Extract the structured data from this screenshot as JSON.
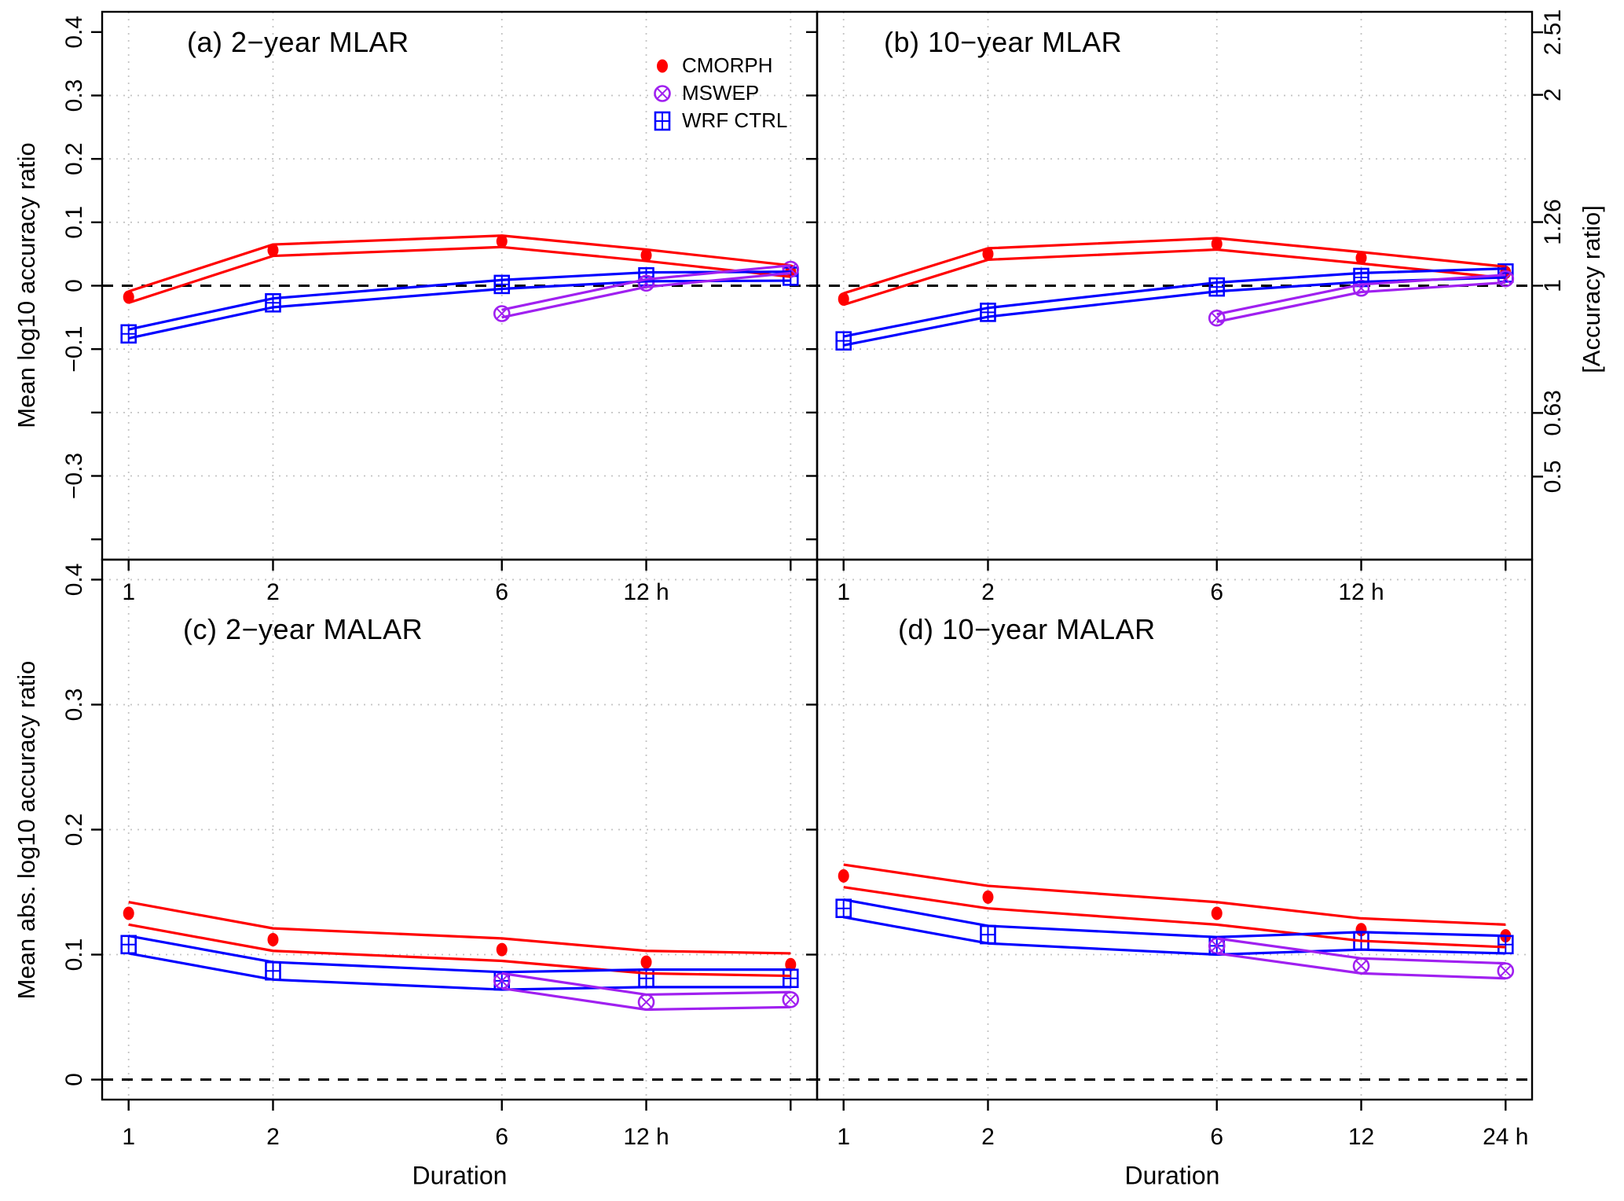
{
  "figure": {
    "panel_titles": {
      "a": "(a) 2−year MLAR",
      "b": "(b) 10−year MLAR",
      "c": "(c) 2−year MALAR",
      "d": "(d) 10−year MALAR"
    },
    "axis_titles": {
      "left_top": "Mean log10 accuracy ratio",
      "left_bottom": "Mean abs. log10 accuracy ratio",
      "right": "[Accuracy ratio]",
      "x_left": "Duration",
      "x_right": "Duration"
    }
  },
  "legend": {
    "items": [
      {
        "label": "CMORPH",
        "series": "CMORPH"
      },
      {
        "label": "MSWEP",
        "series": "MSWEP"
      },
      {
        "label": "WRF CTRL",
        "series": "WRF CTRL"
      }
    ]
  },
  "chart_data": {
    "type": "line",
    "x_scale": "log10",
    "durations_h": [
      1,
      2,
      6,
      12,
      24
    ],
    "series_styles": [
      {
        "name": "CMORPH",
        "color": "#FF0000",
        "marker": "filled-circle",
        "band_halfwidth": 0.009
      },
      {
        "name": "WRF CTRL",
        "color": "#0000FF",
        "marker": "square-plus",
        "band_halfwidth": 0.007
      },
      {
        "name": "MSWEP",
        "color": "#A020F0",
        "marker": "circle-x",
        "band_halfwidth": 0.006
      }
    ],
    "grid_color": "#C4C4C4",
    "zero_line_value": 0,
    "axes": {
      "y_top": {
        "ylim": [
          -0.4,
          0.4
        ],
        "ticks": [
          0.4,
          0.3,
          0.2,
          0.1,
          0,
          -0.1,
          -0.2,
          -0.3,
          -0.4
        ],
        "labels": [
          "0.4",
          "0.3",
          "0.2",
          "0.1",
          "0",
          "−0.1",
          "",
          "−0.3",
          ""
        ]
      },
      "y_bottom": {
        "ylim": [
          0,
          0.4
        ],
        "ticks": [
          0.4,
          0.3,
          0.2,
          0.1,
          0
        ],
        "labels": [
          "0.4",
          "0.3",
          "0.2",
          "0.1",
          "0"
        ]
      },
      "y_right": {
        "ticks": [
          0.39968,
          0.30103,
          0.10037,
          0,
          -0.20066,
          -0.30103
        ],
        "labels": [
          "2.51",
          "2",
          "1.26",
          "1",
          "0.63",
          "0.5"
        ]
      },
      "x_top_labels": [
        "1",
        "2",
        "6",
        "12 h",
        ""
      ],
      "x_bottom_left_labels": [
        "1",
        "2",
        "6",
        "12 h",
        ""
      ],
      "x_bottom_right_labels": [
        "1",
        "2",
        "6",
        "12",
        "24 h"
      ],
      "grid_h_top": [
        0.3,
        0.2,
        0.1,
        -0.1,
        -0.2,
        -0.3
      ],
      "grid_h_bottom": [
        0.4,
        0.3,
        0.2,
        0.1
      ]
    },
    "panels": [
      {
        "id": "a",
        "title": "(a) 2−year MLAR",
        "row": "top",
        "col": "left",
        "series": [
          {
            "name": "CMORPH",
            "x": [
              1,
              2,
              6,
              12,
              24
            ],
            "y": [
              -0.018,
              0.056,
              0.07,
              0.048,
              0.023
            ]
          },
          {
            "name": "WRF CTRL",
            "x": [
              1,
              2,
              6,
              12,
              24
            ],
            "y": [
              -0.076,
              -0.027,
              0.002,
              0.014,
              0.015
            ]
          },
          {
            "name": "MSWEP",
            "x": [
              6,
              12,
              24
            ],
            "y": [
              -0.044,
              0.004,
              0.026
            ]
          }
        ]
      },
      {
        "id": "b",
        "title": "(b) 10−year MLAR",
        "row": "top",
        "col": "right",
        "series": [
          {
            "name": "CMORPH",
            "x": [
              1,
              2,
              6,
              12,
              24
            ],
            "y": [
              -0.021,
              0.05,
              0.066,
              0.044,
              0.021
            ]
          },
          {
            "name": "WRF CTRL",
            "x": [
              1,
              2,
              6,
              12,
              24
            ],
            "y": [
              -0.087,
              -0.042,
              -0.002,
              0.013,
              0.02
            ]
          },
          {
            "name": "MSWEP",
            "x": [
              6,
              12,
              24
            ],
            "y": [
              -0.051,
              -0.004,
              0.011
            ]
          }
        ]
      },
      {
        "id": "c",
        "title": "(c) 2−year MALAR",
        "row": "bottom",
        "col": "left",
        "series": [
          {
            "name": "CMORPH",
            "x": [
              1,
              2,
              6,
              12,
              24
            ],
            "y": [
              0.133,
              0.112,
              0.104,
              0.094,
              0.092
            ]
          },
          {
            "name": "WRF CTRL",
            "x": [
              1,
              2,
              6,
              12,
              24
            ],
            "y": [
              0.108,
              0.087,
              0.079,
              0.081,
              0.081
            ]
          },
          {
            "name": "MSWEP",
            "x": [
              6,
              12,
              24
            ],
            "y": [
              0.079,
              0.062,
              0.064
            ]
          }
        ]
      },
      {
        "id": "d",
        "title": "(d) 10−year MALAR",
        "row": "bottom",
        "col": "right",
        "series": [
          {
            "name": "CMORPH",
            "x": [
              1,
              2,
              6,
              12,
              24
            ],
            "y": [
              0.163,
              0.146,
              0.133,
              0.12,
              0.115
            ]
          },
          {
            "name": "WRF CTRL",
            "x": [
              1,
              2,
              6,
              12,
              24
            ],
            "y": [
              0.137,
              0.116,
              0.107,
              0.111,
              0.108
            ]
          },
          {
            "name": "MSWEP",
            "x": [
              6,
              12,
              24
            ],
            "y": [
              0.107,
              0.091,
              0.087
            ]
          }
        ]
      }
    ]
  }
}
